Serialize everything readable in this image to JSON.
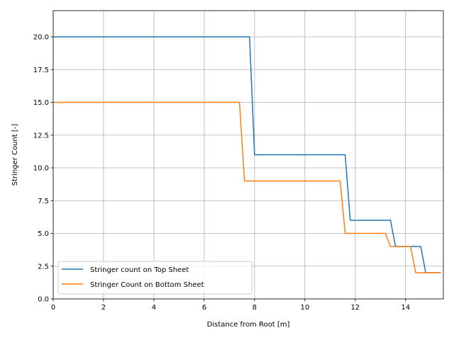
{
  "chart_data": {
    "type": "line",
    "xlabel": "Distance from Root [m]",
    "ylabel": "Stringer Count [-]",
    "xlim": [
      0,
      15.5
    ],
    "ylim": [
      0,
      22
    ],
    "x_ticks": [
      0,
      2,
      4,
      6,
      8,
      10,
      12,
      14
    ],
    "x_tick_labels": [
      "0",
      "2",
      "4",
      "6",
      "8",
      "10",
      "12",
      "14"
    ],
    "y_ticks": [
      0,
      2.5,
      5,
      7.5,
      10,
      12.5,
      15,
      17.5,
      20
    ],
    "y_tick_labels": [
      "0.0",
      "2.5",
      "5.0",
      "7.5",
      "10.0",
      "12.5",
      "15.0",
      "17.5",
      "20.0"
    ],
    "grid": true,
    "legend_position": "bottom-left",
    "series": [
      {
        "name": "Stringer count on Top Sheet",
        "color": "#1f77b4",
        "x": [
          0,
          7.8,
          8.0,
          11.6,
          11.8,
          13.4,
          13.6,
          14.6,
          14.8,
          15.4
        ],
        "y": [
          20,
          20,
          11,
          11,
          6,
          6,
          4,
          4,
          2,
          2
        ]
      },
      {
        "name": "Stringer Count on Bottom Sheet",
        "color": "#ff7f0e",
        "x": [
          0,
          7.4,
          7.6,
          11.4,
          11.6,
          13.2,
          13.4,
          14.2,
          14.4,
          15.4
        ],
        "y": [
          15,
          15,
          9,
          9,
          5,
          5,
          4,
          4,
          2,
          2
        ]
      }
    ]
  }
}
